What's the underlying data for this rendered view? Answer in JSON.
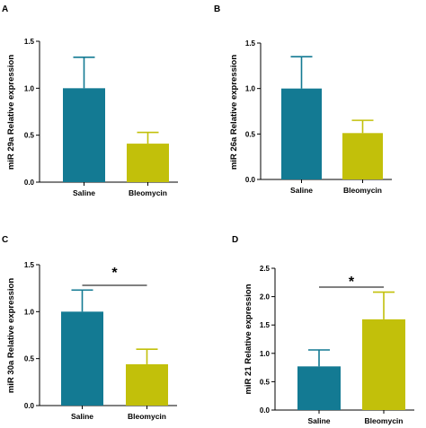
{
  "chart_data": [
    {
      "type": "bar",
      "panel": "A",
      "ylabel": "miR 29a Relative expression",
      "categories": [
        "Saline",
        "Bleomycin"
      ],
      "values": [
        1.0,
        0.41
      ],
      "errors": [
        0.33,
        0.12
      ],
      "colors": [
        "#137a93",
        "#c2c00a"
      ],
      "ylim": [
        0,
        1.5
      ],
      "yticks": [
        0.0,
        0.5,
        1.0,
        1.5
      ],
      "significance": ""
    },
    {
      "type": "bar",
      "panel": "B",
      "ylabel": "miR 26a Relative expression",
      "categories": [
        "Saline",
        "Bleomycin"
      ],
      "values": [
        1.0,
        0.51
      ],
      "errors": [
        0.35,
        0.14
      ],
      "colors": [
        "#137a93",
        "#c2c00a"
      ],
      "ylim": [
        0,
        1.5
      ],
      "yticks": [
        0.0,
        0.5,
        1.0,
        1.5
      ],
      "significance": ""
    },
    {
      "type": "bar",
      "panel": "C",
      "ylabel": "miR 30a Relative expression",
      "categories": [
        "Saline",
        "Bleomycin"
      ],
      "values": [
        1.0,
        0.44
      ],
      "errors": [
        0.23,
        0.16
      ],
      "colors": [
        "#137a93",
        "#c2c00a"
      ],
      "ylim": [
        0,
        1.5
      ],
      "yticks": [
        0.0,
        0.5,
        1.0,
        1.5
      ],
      "significance": "*"
    },
    {
      "type": "bar",
      "panel": "D",
      "ylabel": "miR 21 Relative expression",
      "categories": [
        "Saline",
        "Bleomycin"
      ],
      "values": [
        0.77,
        1.6
      ],
      "errors": [
        0.29,
        0.48
      ],
      "colors": [
        "#137a93",
        "#c2c00a"
      ],
      "ylim": [
        0,
        2.5
      ],
      "yticks": [
        0.0,
        0.5,
        1.0,
        1.5,
        2.0,
        2.5
      ],
      "significance": "*"
    }
  ]
}
